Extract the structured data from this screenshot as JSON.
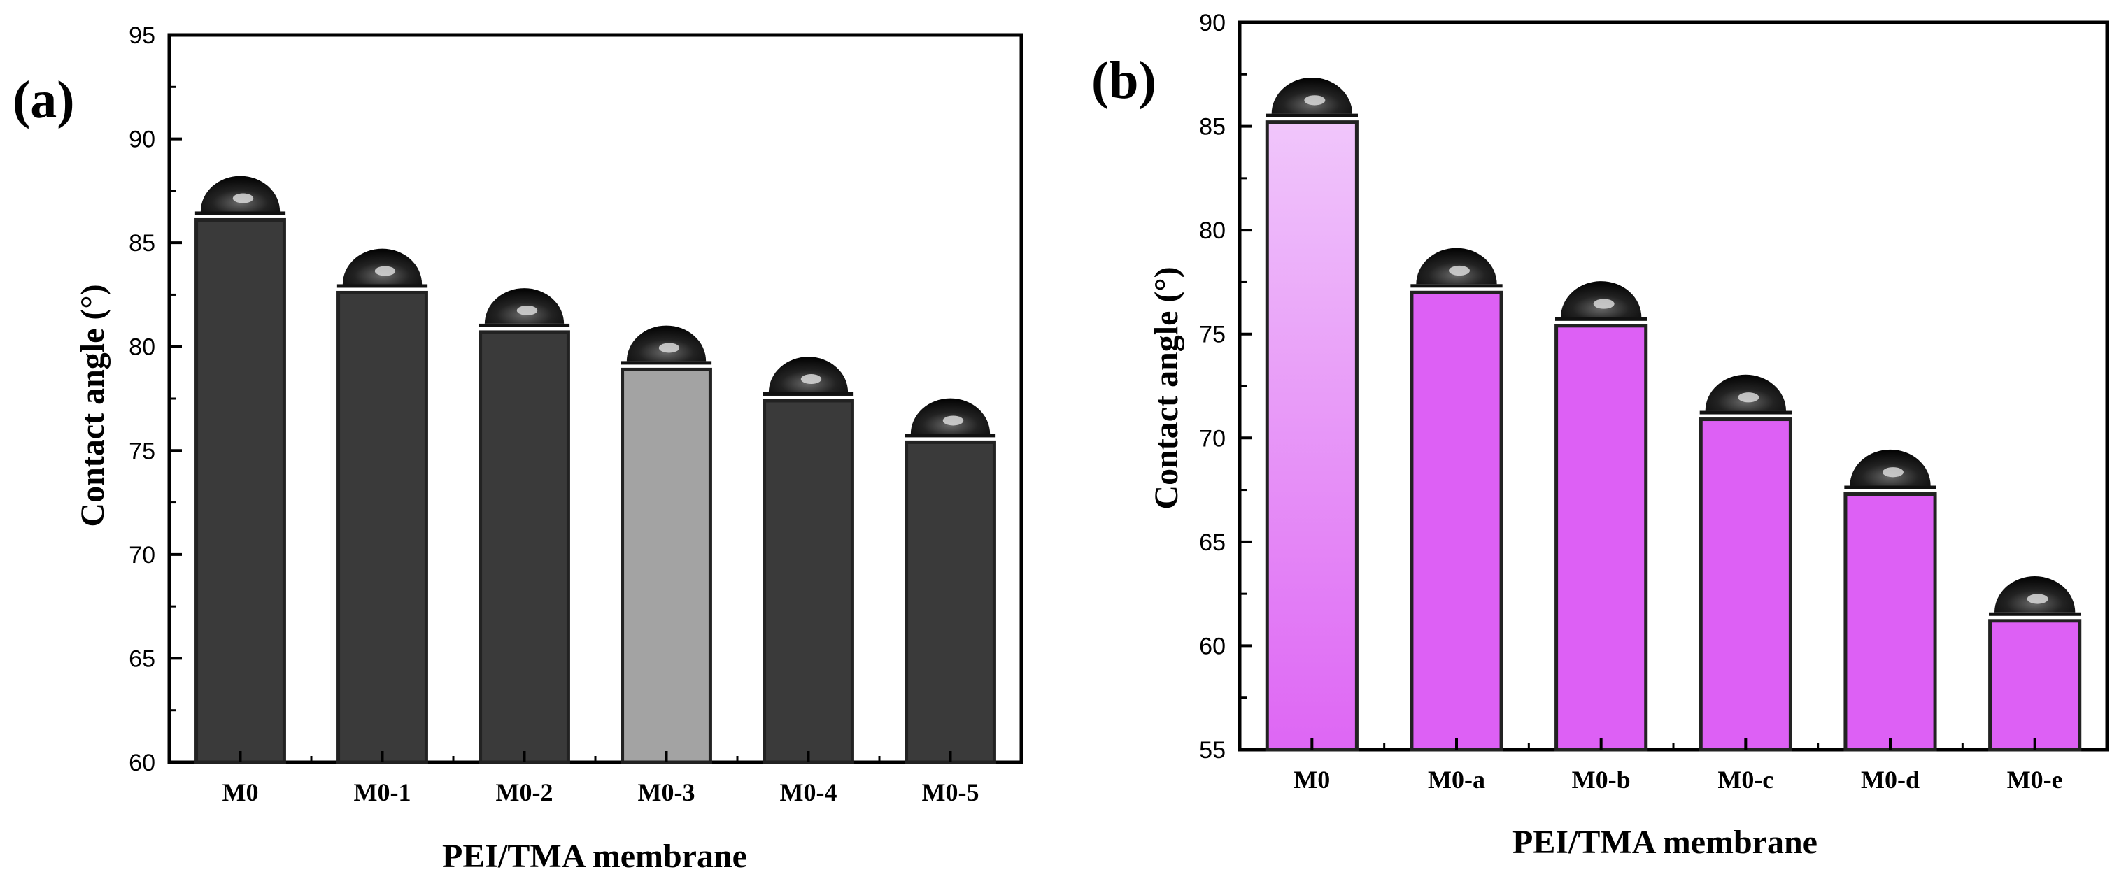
{
  "chart_data": [
    {
      "type": "bar",
      "panel_label": "(a)",
      "title": "",
      "xlabel": "PEI/TMA membrane",
      "ylabel": "Contact angle (°)",
      "categories": [
        "M0",
        "M0-1",
        "M0-2",
        "M0-3",
        "M0-4",
        "M0-5"
      ],
      "values": [
        86.1,
        82.6,
        80.7,
        78.9,
        77.4,
        75.4
      ],
      "bar_colors": [
        "#3a3a3a",
        "#3a3a3a",
        "#3a3a3a",
        "#a3a3a3",
        "#3a3a3a",
        "#3a3a3a"
      ],
      "ylim": [
        60,
        95
      ],
      "yticks": [
        60,
        65,
        70,
        75,
        80,
        85,
        90,
        95
      ],
      "droplet_images": true
    },
    {
      "type": "bar",
      "panel_label": "(b)",
      "title": "",
      "xlabel": "PEI/TMA membrane",
      "ylabel": "Contact angle (°)",
      "categories": [
        "M0",
        "M0-a",
        "M0-b",
        "M0-c",
        "M0-d",
        "M0-e"
      ],
      "values": [
        85.2,
        77.0,
        75.4,
        70.9,
        67.3,
        61.2
      ],
      "bar_colors": [
        "#eebcf9",
        "#dd60f5",
        "#dd60f5",
        "#dd60f5",
        "#dd60f5",
        "#dd60f5"
      ],
      "ylim": [
        55,
        90
      ],
      "yticks": [
        55,
        60,
        65,
        70,
        75,
        80,
        85,
        90
      ],
      "droplet_images": true
    }
  ]
}
